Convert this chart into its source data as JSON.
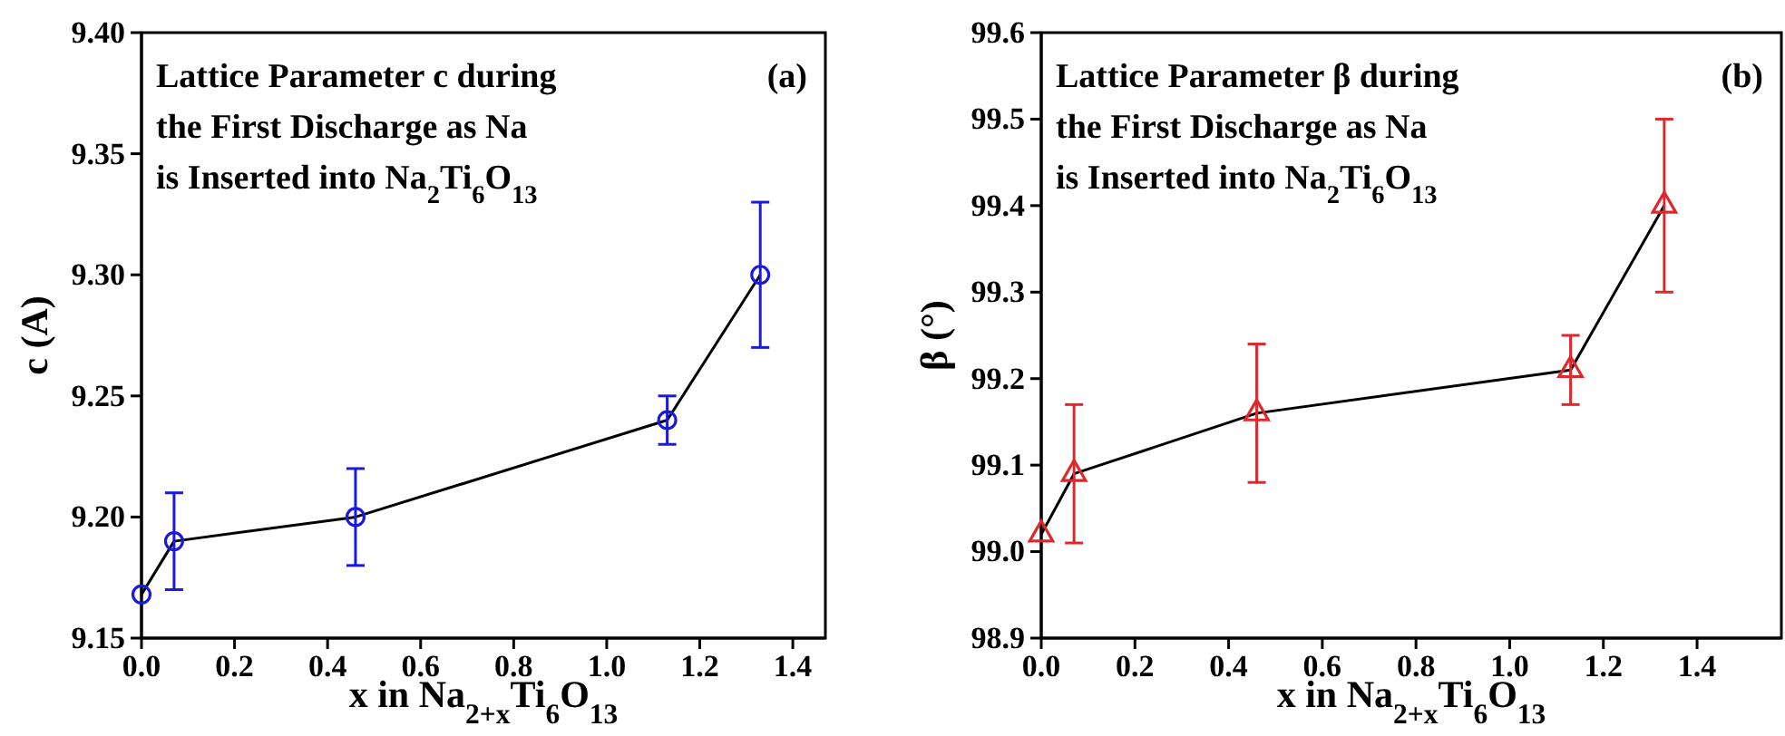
{
  "chart_data": [
    {
      "type": "line",
      "xlabel": "x in Na$_{2+x}$Ti$_{6}$O$_{13}$",
      "ylabel": "c (A)",
      "annotations": [
        "Lattice Parameter c during",
        "the First Discharge as Na",
        "is Inserted into Na$_{2}$Ti$_{6}$O$_{13}$",
        "(a)"
      ],
      "xlim": [
        0,
        1.47
      ],
      "ylim": [
        9.15,
        9.4
      ],
      "xticks": [
        {
          "value": 0,
          "label": "0.0"
        },
        {
          "value": 0.2,
          "label": "0.2"
        },
        {
          "value": 0.4,
          "label": "0.4"
        },
        {
          "value": 0.6,
          "label": "0.6"
        },
        {
          "value": 0.8,
          "label": "0.8"
        },
        {
          "value": 1.0,
          "label": "1.0"
        },
        {
          "value": 1.2,
          "label": "1.2"
        },
        {
          "value": 1.4,
          "label": "1.4"
        }
      ],
      "yticks": [
        9.15,
        {
          "value": 9.2,
          "label": "9.20"
        },
        9.25,
        {
          "value": 9.3,
          "label": "9.30"
        },
        9.35,
        {
          "value": 9.4,
          "label": "9.40"
        }
      ],
      "series": [
        {
          "type": "line",
          "color": "#000000",
          "marker": "none",
          "line_style": "solid",
          "x": [
            0,
            0.07,
            0.46,
            1.13,
            1.33
          ],
          "values": [
            9.168,
            9.19,
            9.2,
            9.24,
            9.3
          ]
        },
        {
          "type": "scatter",
          "color": "#1a1adf",
          "marker": "circle",
          "x": [
            0,
            0.07,
            0.46,
            1.13,
            1.33
          ],
          "values": [
            9.168,
            9.19,
            9.2,
            9.24,
            9.3
          ],
          "errors": [
            null,
            0.02,
            0.02,
            0.01,
            0.03
          ]
        }
      ]
    },
    {
      "type": "line",
      "xlabel": "x in Na$_{2+x}$Ti$_{6}$O$_{13}$",
      "ylabel": "β (°)",
      "annotations": [
        "Lattice Parameter β during",
        "the First Discharge as Na",
        "is Inserted into Na$_{2}$Ti$_{6}$O$_{13}$",
        "(b)"
      ],
      "xlim": [
        0,
        1.58
      ],
      "ylim": [
        98.9,
        99.6
      ],
      "xticks": [
        {
          "value": 0,
          "label": "0.0"
        },
        {
          "value": 0.2,
          "label": "0.2"
        },
        {
          "value": 0.4,
          "label": "0.4"
        },
        {
          "value": 0.6,
          "label": "0.6"
        },
        {
          "value": 0.8,
          "label": "0.8"
        },
        {
          "value": 1.0,
          "label": "1.0"
        },
        {
          "value": 1.2,
          "label": "1.2"
        },
        {
          "value": 1.4,
          "label": "1.4"
        }
      ],
      "yticks": [
        98.9,
        {
          "value": 99.0,
          "label": "99.0"
        },
        99.1,
        99.2,
        99.3,
        99.4,
        99.5,
        99.6
      ],
      "series": [
        {
          "type": "line",
          "color": "#000000",
          "marker": "none",
          "line_style": "solid",
          "x": [
            0,
            0.07,
            0.46,
            1.13,
            1.33
          ],
          "values": [
            99.02,
            99.09,
            99.16,
            99.21,
            99.4
          ]
        },
        {
          "type": "scatter",
          "color": "#e0282c",
          "marker": "triangle",
          "x": [
            0,
            0.07,
            0.46,
            1.13,
            1.33
          ],
          "values": [
            99.02,
            99.09,
            99.16,
            99.21,
            99.4
          ],
          "errors": [
            null,
            0.08,
            0.08,
            0.04,
            0.1
          ]
        }
      ]
    }
  ]
}
